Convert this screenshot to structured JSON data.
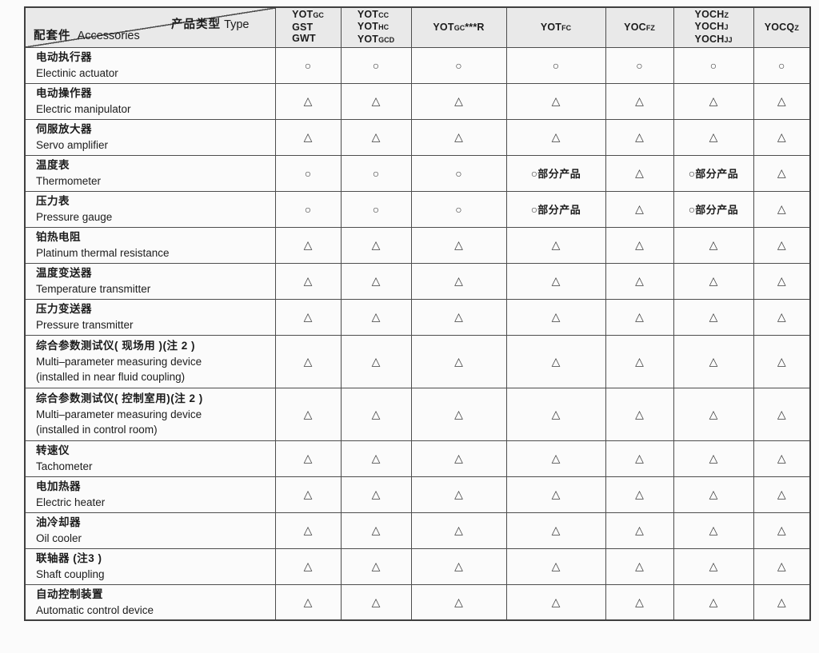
{
  "colors": {
    "header_bg": "#e9e9e9",
    "border": "#4d4d4d",
    "text": "#1c1c1c",
    "page_bg": "#fbfbfb"
  },
  "table": {
    "corner": {
      "type_zh": "产品类型",
      "type_en": "Type",
      "acc_zh": "配套件",
      "acc_en": "Accessories"
    },
    "product_columns": [
      {
        "lines": [
          [
            {
              "t": "YOT"
            },
            {
              "t": "GC",
              "sub": true
            }
          ],
          [
            {
              "t": "GST"
            }
          ],
          [
            {
              "t": "GWT"
            }
          ]
        ]
      },
      {
        "lines": [
          [
            {
              "t": "YOT"
            },
            {
              "t": "CC",
              "sub": true
            }
          ],
          [
            {
              "t": "YOT"
            },
            {
              "t": "HC",
              "sub": true
            }
          ],
          [
            {
              "t": "YOT"
            },
            {
              "t": "GCD",
              "sub": true
            }
          ]
        ]
      },
      {
        "lines": [
          [
            {
              "t": "YOT"
            },
            {
              "t": "GC",
              "sub": true
            },
            {
              "t": "***R"
            }
          ]
        ]
      },
      {
        "lines": [
          [
            {
              "t": "YOT"
            },
            {
              "t": "FC",
              "sub": true
            }
          ]
        ]
      },
      {
        "lines": [
          [
            {
              "t": "YOC"
            },
            {
              "t": "FZ",
              "sub": true
            }
          ]
        ]
      },
      {
        "lines": [
          [
            {
              "t": "YOCH"
            },
            {
              "t": "Z",
              "sub": true
            }
          ],
          [
            {
              "t": "YOCH"
            },
            {
              "t": "J",
              "sub": true
            }
          ],
          [
            {
              "t": "YOCH"
            },
            {
              "t": "JJ",
              "sub": true
            }
          ]
        ]
      },
      {
        "lines": [
          [
            {
              "t": "YOCQ"
            },
            {
              "t": "Z",
              "sub": true
            }
          ]
        ]
      }
    ],
    "symbols": {
      "circle": "○",
      "triangle": "△",
      "partial": "部分产品"
    },
    "rows": [
      {
        "zh": "电动执行器",
        "en": [
          "Electinic actuator"
        ],
        "cells": [
          "c",
          "c",
          "c",
          "c",
          "c",
          "c",
          "c"
        ]
      },
      {
        "zh": "电动操作器",
        "en": [
          "Electric manipulator"
        ],
        "cells": [
          "t",
          "t",
          "t",
          "t",
          "t",
          "t",
          "t"
        ]
      },
      {
        "zh": "伺服放大器",
        "en": [
          "Servo amplifier"
        ],
        "cells": [
          "t",
          "t",
          "t",
          "t",
          "t",
          "t",
          "t"
        ]
      },
      {
        "zh": "温度表",
        "en": [
          "Thermometer"
        ],
        "cells": [
          "c",
          "c",
          "c",
          "cp",
          "t",
          "cp",
          "t"
        ]
      },
      {
        "zh": "压力表",
        "en": [
          "Pressure gauge"
        ],
        "cells": [
          "c",
          "c",
          "c",
          "cp",
          "t",
          "cp",
          "t"
        ]
      },
      {
        "zh": "铂热电阻",
        "en": [
          "Platinum thermal resistance"
        ],
        "cells": [
          "t",
          "t",
          "t",
          "t",
          "t",
          "t",
          "t"
        ]
      },
      {
        "zh": "温度变送器",
        "en": [
          "Temperature transmitter"
        ],
        "cells": [
          "t",
          "t",
          "t",
          "t",
          "t",
          "t",
          "t"
        ]
      },
      {
        "zh": "压力变送器",
        "en": [
          "Pressure transmitter"
        ],
        "cells": [
          "t",
          "t",
          "t",
          "t",
          "t",
          "t",
          "t"
        ]
      },
      {
        "zh": "综合参数测试仪( 现场用 )(注 2 )",
        "en": [
          "Multi–parameter measuring device",
          "(installed in near fluid coupling)"
        ],
        "cells": [
          "t",
          "t",
          "t",
          "t",
          "t",
          "t",
          "t"
        ]
      },
      {
        "zh": "综合参数测试仪( 控制室用)(注 2 )",
        "en": [
          "Multi–parameter measuring device",
          "(installed in control room)"
        ],
        "cells": [
          "t",
          "t",
          "t",
          "t",
          "t",
          "t",
          "t"
        ]
      },
      {
        "zh": "转速仪",
        "en": [
          "Tachometer"
        ],
        "cells": [
          "t",
          "t",
          "t",
          "t",
          "t",
          "t",
          "t"
        ]
      },
      {
        "zh": "电加热器",
        "en": [
          "Electric heater"
        ],
        "cells": [
          "t",
          "t",
          "t",
          "t",
          "t",
          "t",
          "t"
        ]
      },
      {
        "zh": "油冷却器",
        "en": [
          "Oil cooler"
        ],
        "cells": [
          "t",
          "t",
          "t",
          "t",
          "t",
          "t",
          "t"
        ]
      },
      {
        "zh": "联轴器 (注3 )",
        "en": [
          "Shaft coupling"
        ],
        "cells": [
          "t",
          "t",
          "t",
          "t",
          "t",
          "t",
          "t"
        ]
      },
      {
        "zh": "自动控制装置",
        "en": [
          "Automatic control device"
        ],
        "cells": [
          "t",
          "t",
          "t",
          "t",
          "t",
          "t",
          "t"
        ]
      }
    ]
  }
}
